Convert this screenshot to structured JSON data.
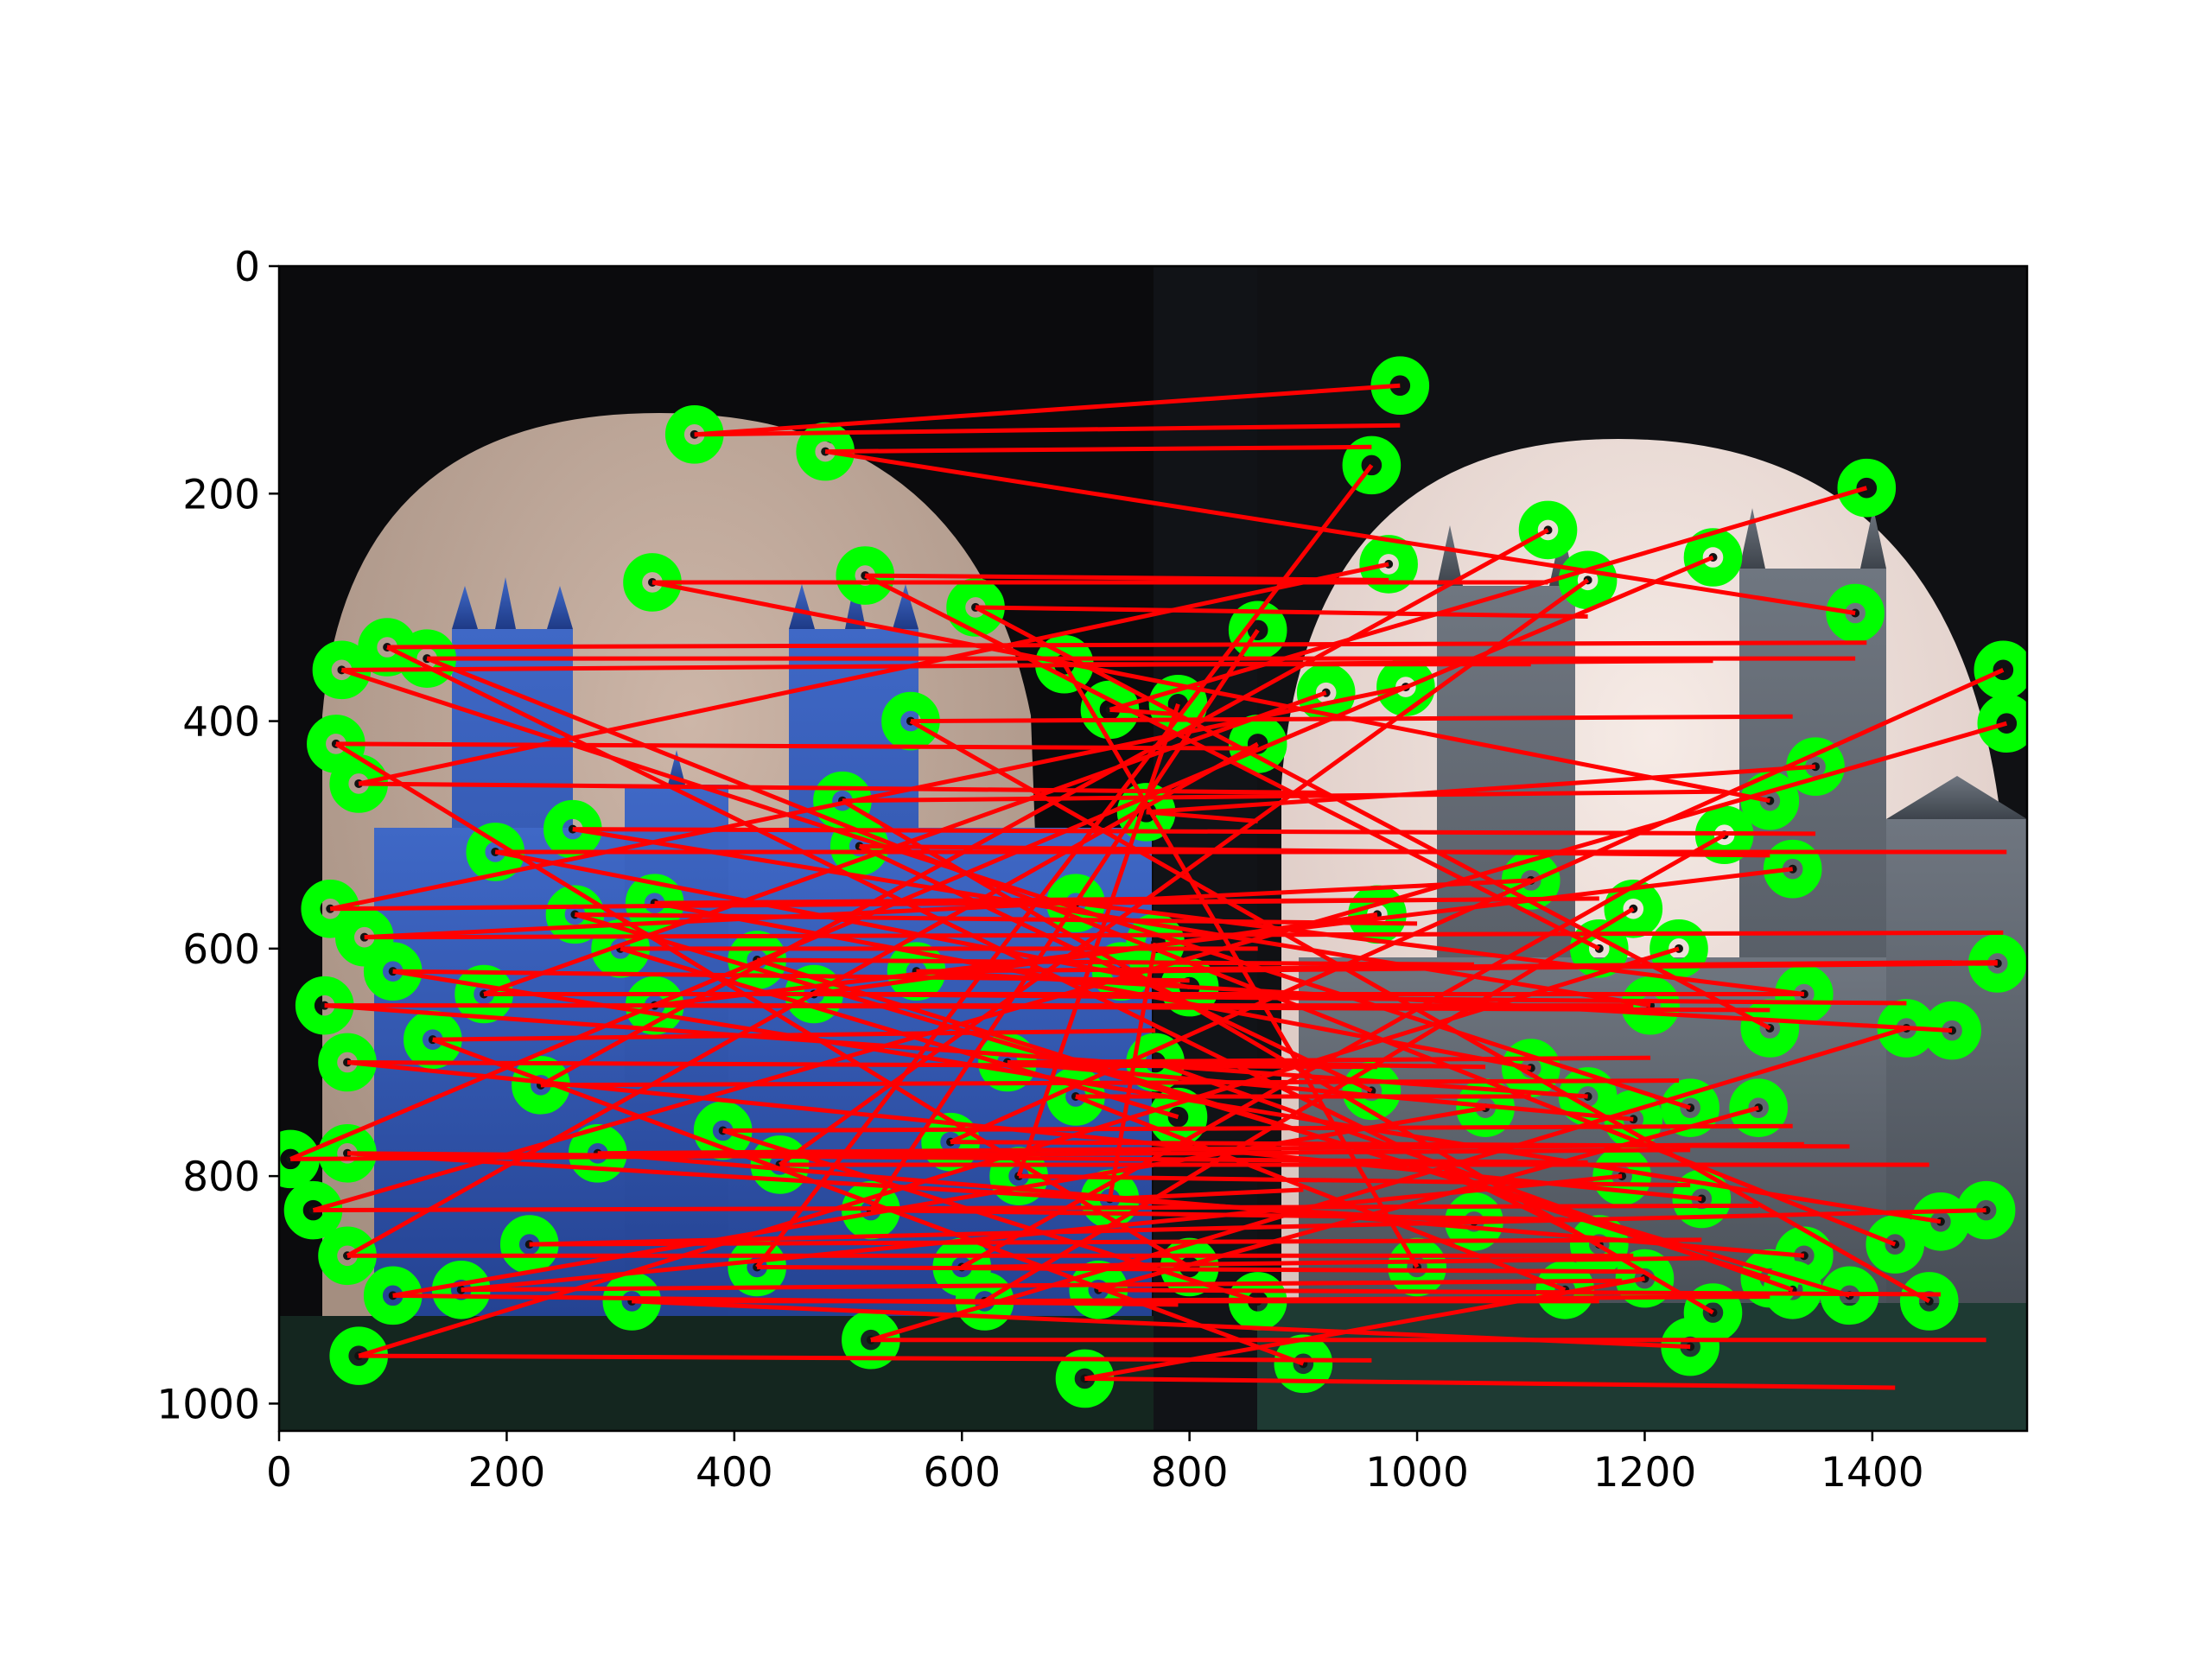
{
  "chart_data": {
    "type": "image-plot",
    "x_ticks": [
      "0",
      "200",
      "400",
      "600",
      "800",
      "1000",
      "1200",
      "1400"
    ],
    "y_ticks": [
      "0",
      "200",
      "400",
      "600",
      "800",
      "1000"
    ],
    "x_tick_values": [
      0,
      200,
      400,
      600,
      800,
      1000,
      1200,
      1400
    ],
    "y_tick_values": [
      0,
      200,
      400,
      600,
      800,
      1000
    ],
    "xlim": [
      0,
      1536
    ],
    "ylim": [
      1024,
      0
    ],
    "y_inverted": true,
    "grid": false,
    "image_split_x": 768,
    "marker_color": "#00ff00",
    "line_color": "#ff0000",
    "keypoints_left": [
      [
        365,
        148
      ],
      [
        480,
        163
      ],
      [
        328,
        278
      ],
      [
        515,
        272
      ],
      [
        612,
        300
      ],
      [
        55,
        355
      ],
      [
        95,
        335
      ],
      [
        130,
        345
      ],
      [
        50,
        420
      ],
      [
        70,
        455
      ],
      [
        45,
        565
      ],
      [
        75,
        590
      ],
      [
        190,
        515
      ],
      [
        258,
        495
      ],
      [
        510,
        510
      ],
      [
        495,
        470
      ],
      [
        555,
        400
      ],
      [
        690,
        350
      ],
      [
        730,
        390
      ],
      [
        762,
        480
      ],
      [
        740,
        620
      ],
      [
        700,
        560
      ],
      [
        40,
        650
      ],
      [
        60,
        700
      ],
      [
        100,
        620
      ],
      [
        135,
        680
      ],
      [
        230,
        720
      ],
      [
        180,
        640
      ],
      [
        330,
        650
      ],
      [
        470,
        640
      ],
      [
        560,
        620
      ],
      [
        640,
        700
      ],
      [
        700,
        730
      ],
      [
        770,
        700
      ],
      [
        60,
        780
      ],
      [
        10,
        785
      ],
      [
        30,
        830
      ],
      [
        60,
        870
      ],
      [
        70,
        958
      ],
      [
        100,
        905
      ],
      [
        160,
        900
      ],
      [
        220,
        860
      ],
      [
        310,
        910
      ],
      [
        420,
        880
      ],
      [
        520,
        830
      ],
      [
        600,
        880
      ],
      [
        620,
        910
      ],
      [
        520,
        944
      ],
      [
        720,
        900
      ],
      [
        708,
        978
      ],
      [
        280,
        780
      ],
      [
        390,
        760
      ],
      [
        440,
        790
      ],
      [
        590,
        770
      ],
      [
        650,
        800
      ],
      [
        730,
        820
      ],
      [
        330,
        560
      ],
      [
        300,
        600
      ],
      [
        420,
        610
      ],
      [
        260,
        570
      ]
    ],
    "keypoints_right": [
      [
        985,
        105
      ],
      [
        960,
        175
      ],
      [
        1115,
        232
      ],
      [
        975,
        262
      ],
      [
        1150,
        276
      ],
      [
        1260,
        256
      ],
      [
        1395,
        195
      ],
      [
        1385,
        305
      ],
      [
        860,
        320
      ],
      [
        920,
        375
      ],
      [
        990,
        370
      ],
      [
        1515,
        355
      ],
      [
        1518,
        402
      ],
      [
        1350,
        440
      ],
      [
        1310,
        470
      ],
      [
        1270,
        500
      ],
      [
        1330,
        530
      ],
      [
        1100,
        540
      ],
      [
        790,
        385
      ],
      [
        860,
        420
      ],
      [
        1510,
        613
      ],
      [
        1160,
        600
      ],
      [
        1190,
        565
      ],
      [
        965,
        570
      ],
      [
        800,
        634
      ],
      [
        770,
        595
      ],
      [
        1230,
        600
      ],
      [
        1340,
        640
      ],
      [
        1310,
        670
      ],
      [
        1430,
        670
      ],
      [
        1470,
        672
      ],
      [
        1205,
        650
      ],
      [
        1100,
        705
      ],
      [
        1060,
        740
      ],
      [
        1150,
        730
      ],
      [
        1240,
        740
      ],
      [
        1300,
        740
      ],
      [
        1190,
        750
      ],
      [
        960,
        725
      ],
      [
        790,
        748
      ],
      [
        1180,
        800
      ],
      [
        1250,
        820
      ],
      [
        1160,
        860
      ],
      [
        1200,
        890
      ],
      [
        1130,
        900
      ],
      [
        1260,
        920
      ],
      [
        1310,
        890
      ],
      [
        1500,
        830
      ],
      [
        1460,
        840
      ],
      [
        1420,
        860
      ],
      [
        1340,
        870
      ],
      [
        1330,
        900
      ],
      [
        1450,
        910
      ],
      [
        1380,
        905
      ],
      [
        1240,
        950
      ],
      [
        900,
        965
      ],
      [
        800,
        880
      ],
      [
        860,
        910
      ],
      [
        1050,
        840
      ],
      [
        1000,
        880
      ]
    ]
  }
}
